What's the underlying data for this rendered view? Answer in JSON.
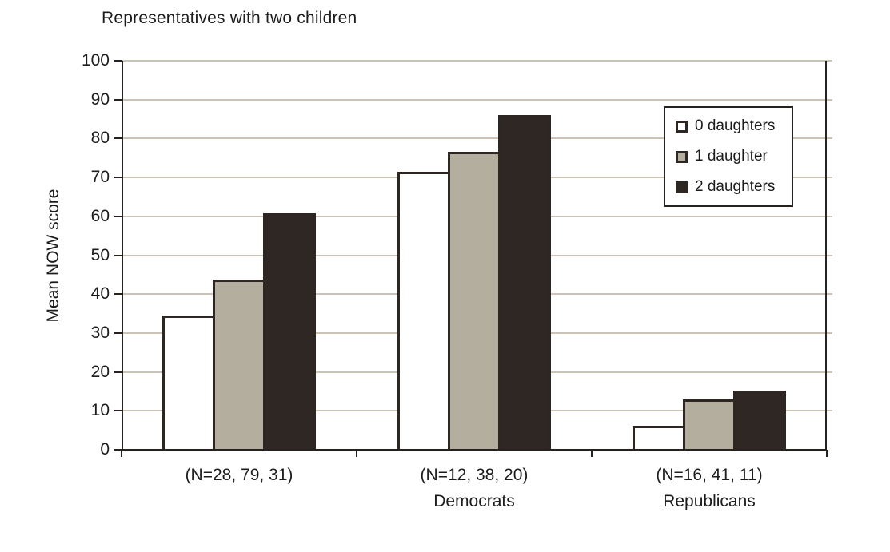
{
  "chart_data": {
    "type": "bar",
    "title": "Representatives with two children",
    "xlabel": "",
    "ylabel": "Mean NOW score",
    "ylim": [
      0,
      100
    ],
    "yticks": [
      0,
      10,
      20,
      30,
      40,
      50,
      60,
      70,
      80,
      90,
      100
    ],
    "grid": true,
    "legend_position": "upper right",
    "categories": [
      {
        "n_label": "(N=28, 79, 31)",
        "party": ""
      },
      {
        "n_label": "(N=12, 38, 20)",
        "party": "Democrats"
      },
      {
        "n_label": "(N=16, 41, 11)",
        "party": "Republicans"
      }
    ],
    "series": [
      {
        "name": "0 daughters",
        "color": "#ffffff",
        "values": [
          34.5,
          71.5,
          6.1
        ]
      },
      {
        "name": "1 daughter",
        "color": "#b4ae9e",
        "values": [
          43.7,
          76.6,
          13.0
        ]
      },
      {
        "name": "2 daughters",
        "color": "#2f2723",
        "values": [
          60.8,
          86.0,
          15.2
        ]
      }
    ],
    "colors": {
      "bar_border": "#2e2622",
      "gridline": "#cbc4b6",
      "axis": "#262220",
      "text": "#1c1c1c",
      "background": "#ffffff"
    }
  }
}
